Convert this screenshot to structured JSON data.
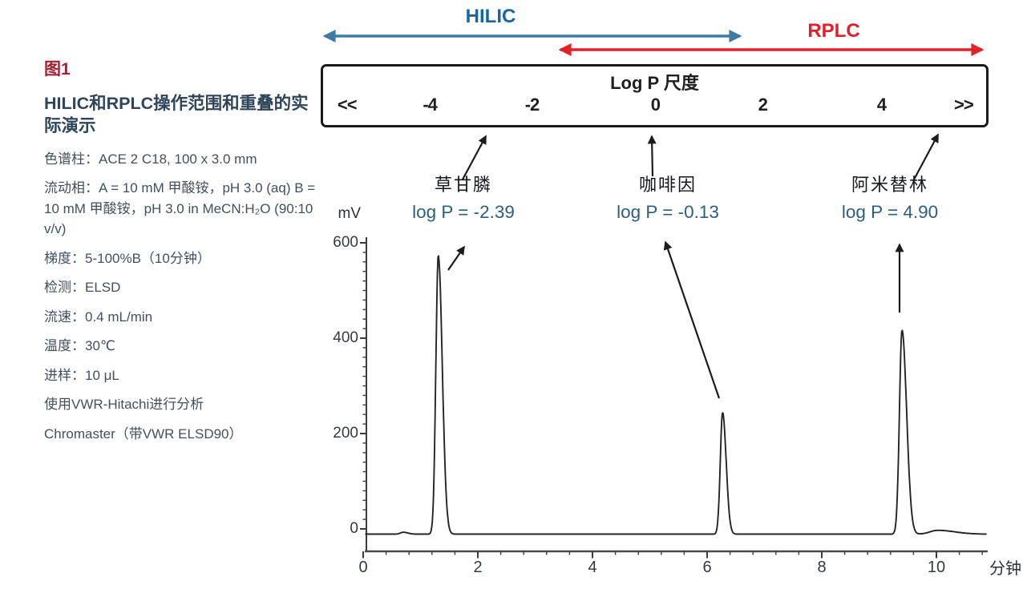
{
  "figure": {
    "label": "图1",
    "title": "HILIC和RPLC操作范围和重叠的实际演示",
    "conditions": [
      "色谱柱：ACE 2 C18, 100 x 3.0 mm",
      "流动相：A = 10 mM 甲酸铵，pH 3.0 (aq) B = 10 mM 甲酸铵，pH 3.0 in MeCN:H₂O (90:10 v/v)",
      "梯度：5-100%B（10分钟）",
      "检测：ELSD",
      "流速：0.4 mL/min",
      "温度：30℃",
      "进样：10 μL",
      "使用VWR-Hitachi进行分析",
      "Chromaster（带VWR ELSD90）"
    ]
  },
  "technique_ranges": {
    "hilic_label": "HILIC",
    "rplc_label": "RPLC",
    "hilic_color": "#1668A0",
    "rplc_color": "#E2202A"
  },
  "logp_scale": {
    "title": "Log P 尺度",
    "labels": [
      "<<",
      "-4",
      "-2",
      "0",
      "2",
      "4",
      ">>"
    ]
  },
  "compounds": [
    {
      "name": "草甘膦",
      "logp_label": "log P = -2.39"
    },
    {
      "name": "咖啡因",
      "logp_label": "log P = -0.13"
    },
    {
      "name": "阿米替林",
      "logp_label": "log P = 4.90"
    }
  ],
  "chart_data": {
    "type": "line",
    "kind": "chromatogram",
    "xlabel": "分钟",
    "ylabel": "mV",
    "x_ticks": [
      0,
      2,
      4,
      6,
      8,
      10
    ],
    "y_ticks": [
      0,
      200,
      400,
      600
    ],
    "xlim": [
      0,
      10.9
    ],
    "ylim": [
      -30,
      620
    ],
    "x_minor_step": 0.4,
    "y_minor_step": 20,
    "baseline_mV": -11,
    "peaks": [
      {
        "compound": "草甘膦",
        "log_p": -2.39,
        "retention_min": 1.31,
        "height_mV": 585,
        "sigma_left": 0.042,
        "sigma_right": 0.07
      },
      {
        "compound": "咖啡因",
        "log_p": -0.13,
        "retention_min": 6.27,
        "height_mV": 255,
        "sigma_left": 0.04,
        "sigma_right": 0.062
      },
      {
        "compound": "阿米替林",
        "log_p": 4.9,
        "retention_min": 9.4,
        "height_mV": 428,
        "sigma_left": 0.045,
        "sigma_right": 0.08
      }
    ],
    "minor_features": [
      {
        "retention_min": 0.7,
        "height_mV": 4,
        "sigma_left": 0.05,
        "sigma_right": 0.08
      },
      {
        "retention_min": 10.02,
        "height_mV": 8,
        "sigma_left": 0.13,
        "sigma_right": 0.3
      }
    ]
  }
}
